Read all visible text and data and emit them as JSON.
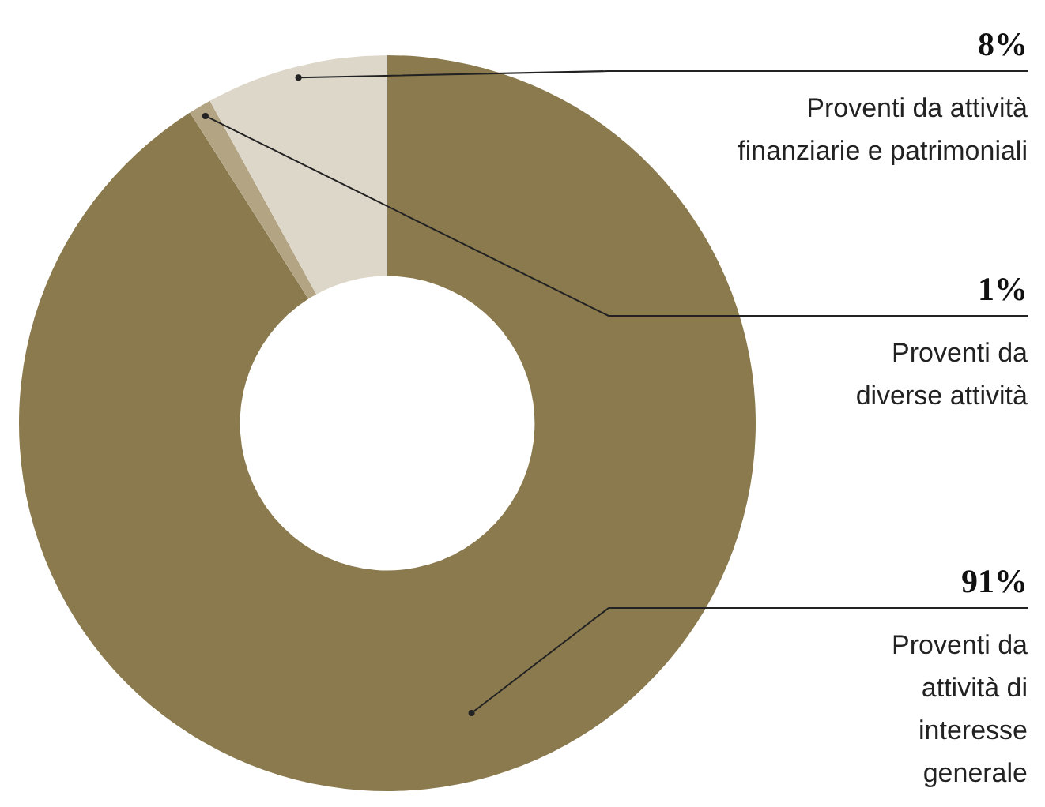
{
  "chart_data": {
    "type": "donut",
    "categories": [
      "Proventi da attività di interesse generale",
      "Proventi da diverse attività",
      "Proventi da attività finanziarie e patrimoniali"
    ],
    "values": [
      91,
      1,
      8
    ],
    "value_labels": [
      "91%",
      "1%",
      "8%"
    ],
    "colors": [
      "#8a7a4e",
      "#b3a584",
      "#ddd7c9"
    ],
    "legend": false
  }
}
